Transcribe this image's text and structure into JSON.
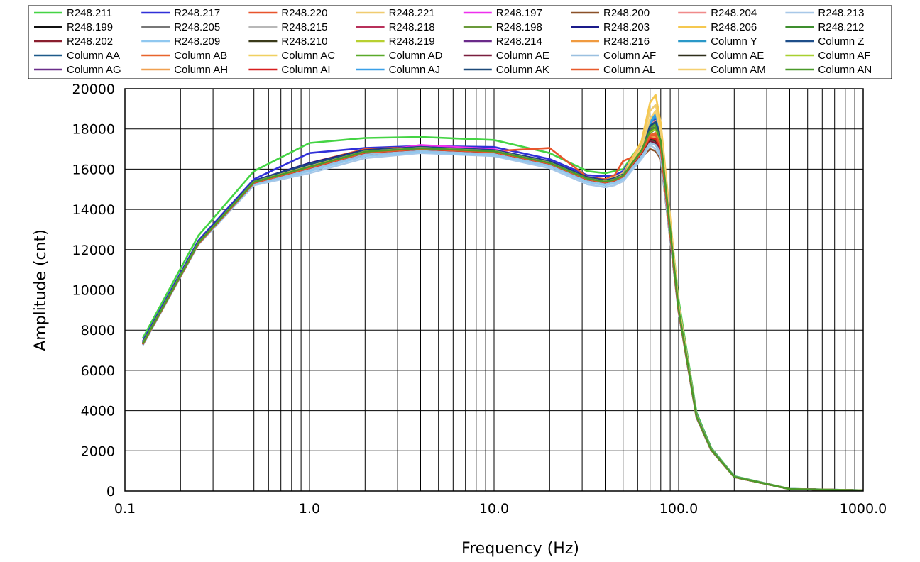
{
  "chart_data": {
    "type": "line",
    "title": "",
    "xlabel": "Frequency (Hz)",
    "ylabel": "Amplitude  (cnt)",
    "xscale": "log",
    "xlim": [
      0.1,
      1000
    ],
    "ylim": [
      0,
      20000
    ],
    "grid": true,
    "legend_position": "top",
    "x_ticks": [
      "0.1",
      "1.0",
      "10.0",
      "100.0",
      "1000.0"
    ],
    "y_ticks": [
      "0",
      "2000",
      "4000",
      "6000",
      "8000",
      "10000",
      "12000",
      "14000",
      "16000",
      "18000",
      "20000"
    ],
    "x": [
      0.125,
      0.25,
      0.5,
      1,
      2,
      4,
      10,
      20,
      32,
      40,
      45,
      50,
      63,
      70,
      75,
      80,
      100,
      125,
      150,
      200,
      400,
      1000
    ],
    "series": [
      {
        "name": "R248.211",
        "color": "#44d444",
        "values": [
          7600,
          12700,
          15900,
          17300,
          17550,
          17600,
          17450,
          16800,
          15900,
          15800,
          15900,
          16000,
          17300,
          18400,
          18700,
          17800,
          9500,
          3900,
          2150,
          740,
          110,
          40
        ]
      },
      {
        "name": "R248.217",
        "color": "#3030d8",
        "values": [
          7450,
          12450,
          15500,
          16800,
          17050,
          17150,
          17100,
          16500,
          15700,
          15650,
          15700,
          15900,
          17200,
          18200,
          18500,
          17700,
          9300,
          3800,
          2100,
          720,
          105,
          40
        ]
      },
      {
        "name": "R248.220",
        "color": "#e8542c",
        "values": [
          7300,
          12300,
          15400,
          16300,
          17000,
          17100,
          16900,
          17050,
          15600,
          15500,
          15700,
          16400,
          16800,
          17800,
          18000,
          17300,
          9000,
          3700,
          2050,
          700,
          100,
          35
        ]
      },
      {
        "name": "R248.221",
        "color": "#f0cc70",
        "values": [
          7350,
          12350,
          15400,
          16200,
          16800,
          17000,
          16850,
          16300,
          15550,
          15450,
          15600,
          15800,
          17300,
          18900,
          19200,
          18100,
          9200,
          3750,
          2080,
          710,
          100,
          35
        ]
      },
      {
        "name": "R248.197",
        "color": "#ee30ee",
        "values": [
          7350,
          12350,
          15350,
          16100,
          16800,
          17200,
          17000,
          16300,
          15500,
          15350,
          15450,
          15650,
          17000,
          18200,
          18400,
          17600,
          9100,
          3750,
          2070,
          710,
          100,
          35
        ]
      },
      {
        "name": "R248.200",
        "color": "#8a5028",
        "values": [
          7300,
          12300,
          15300,
          16000,
          16800,
          17000,
          16800,
          16200,
          15500,
          15300,
          15400,
          15550,
          16600,
          17000,
          16900,
          16500,
          8900,
          3650,
          2030,
          700,
          100,
          35
        ]
      },
      {
        "name": "R248.204",
        "color": "#f08a8a",
        "values": [
          7350,
          12350,
          15350,
          16100,
          16900,
          17050,
          16900,
          16300,
          15500,
          15400,
          15500,
          15700,
          17100,
          18300,
          18400,
          17500,
          9100,
          3740,
          2060,
          710,
          100,
          35
        ]
      },
      {
        "name": "R248.213",
        "color": "#a8c8e8",
        "values": [
          7250,
          12250,
          15200,
          15800,
          16550,
          16800,
          16650,
          16050,
          15250,
          15100,
          15200,
          15400,
          16500,
          17200,
          17000,
          16600,
          8900,
          3650,
          2030,
          690,
          100,
          35
        ]
      },
      {
        "name": "R248.199",
        "color": "#111111",
        "values": [
          7350,
          12350,
          15400,
          16150,
          16850,
          17000,
          16850,
          16300,
          15550,
          15400,
          15500,
          15700,
          16900,
          17900,
          18000,
          17300,
          9000,
          3700,
          2050,
          700,
          100,
          35
        ]
      },
      {
        "name": "R248.205",
        "color": "#777777",
        "values": [
          7300,
          12300,
          15350,
          16050,
          16800,
          16950,
          16800,
          16250,
          15500,
          15350,
          15450,
          15650,
          16800,
          17600,
          17500,
          17100,
          8950,
          3680,
          2040,
          700,
          100,
          35
        ]
      },
      {
        "name": "R248.215",
        "color": "#b8b8b8",
        "values": [
          7300,
          12300,
          15300,
          16000,
          16700,
          16900,
          16750,
          16200,
          15450,
          15300,
          15400,
          15600,
          16700,
          17400,
          17300,
          16900,
          8900,
          3670,
          2040,
          700,
          100,
          35
        ]
      },
      {
        "name": "R248.218",
        "color": "#b8305a",
        "values": [
          7320,
          12320,
          15350,
          16100,
          16850,
          17000,
          16850,
          16300,
          15500,
          15350,
          15450,
          15650,
          16900,
          17900,
          18100,
          17400,
          9000,
          3700,
          2050,
          700,
          100,
          35
        ]
      },
      {
        "name": "R248.198",
        "color": "#6a9a3a",
        "values": [
          7330,
          12330,
          15380,
          16150,
          16900,
          17050,
          16900,
          16300,
          15550,
          15400,
          15500,
          15700,
          16950,
          17950,
          18150,
          17450,
          9050,
          3710,
          2060,
          705,
          100,
          35
        ]
      },
      {
        "name": "R248.203",
        "color": "#1a1a8a",
        "values": [
          7380,
          12380,
          15420,
          16300,
          16950,
          17100,
          16950,
          16400,
          15600,
          15450,
          15550,
          15750,
          17050,
          18100,
          18300,
          17600,
          9100,
          3730,
          2070,
          710,
          100,
          35
        ]
      },
      {
        "name": "R248.206",
        "color": "#f5c850",
        "values": [
          7340,
          12340,
          15380,
          16150,
          16850,
          17050,
          16900,
          16300,
          15500,
          15400,
          15500,
          15750,
          17400,
          19300,
          19700,
          18300,
          9300,
          3760,
          2080,
          710,
          100,
          35
        ]
      },
      {
        "name": "R248.212",
        "color": "#3e8e2e",
        "values": [
          7320,
          12320,
          15350,
          16100,
          16850,
          17000,
          16850,
          16300,
          15500,
          15350,
          15450,
          15650,
          16900,
          17800,
          18000,
          17300,
          9000,
          3700,
          2050,
          700,
          100,
          35
        ]
      },
      {
        "name": "R248.202",
        "color": "#8a1e2e",
        "values": [
          7280,
          12280,
          15300,
          16000,
          16750,
          16950,
          16800,
          16250,
          15450,
          15300,
          15400,
          15600,
          16700,
          17300,
          17200,
          16800,
          8900,
          3670,
          2040,
          700,
          100,
          35
        ]
      },
      {
        "name": "R248.209",
        "color": "#90c8f0",
        "values": [
          7260,
          12260,
          15250,
          15900,
          16650,
          16850,
          16700,
          16150,
          15350,
          15200,
          15300,
          15500,
          16600,
          17300,
          17200,
          16750,
          8900,
          3660,
          2035,
          695,
          100,
          35
        ]
      },
      {
        "name": "R248.210",
        "color": "#3a3a1a",
        "values": [
          7300,
          12300,
          15320,
          16050,
          16800,
          16980,
          16820,
          16260,
          15480,
          15330,
          15430,
          15630,
          16800,
          17500,
          17400,
          17000,
          8950,
          3680,
          2045,
          700,
          100,
          35
        ]
      },
      {
        "name": "R248.219",
        "color": "#b8d030",
        "values": [
          7330,
          12330,
          15360,
          16120,
          16880,
          17030,
          16870,
          16310,
          15520,
          15370,
          15470,
          15670,
          16950,
          17900,
          18100,
          17400,
          9050,
          3710,
          2060,
          705,
          100,
          35
        ]
      },
      {
        "name": "R248.214",
        "color": "#6a2a8a",
        "values": [
          7340,
          12340,
          15370,
          16150,
          16900,
          17080,
          16920,
          16340,
          15540,
          15390,
          15490,
          15690,
          16980,
          17950,
          18150,
          17450,
          9060,
          3715,
          2062,
          706,
          100,
          35
        ]
      },
      {
        "name": "R248.216",
        "color": "#f09a40",
        "values": [
          7320,
          12320,
          15340,
          16080,
          16840,
          17000,
          16850,
          16280,
          15500,
          15350,
          15450,
          15650,
          16850,
          17600,
          17500,
          17100,
          8980,
          3690,
          2048,
          700,
          100,
          35
        ]
      },
      {
        "name": "Column Y",
        "color": "#2a98c8",
        "values": [
          7350,
          12350,
          15400,
          16200,
          16900,
          17080,
          16920,
          16350,
          15560,
          15420,
          15520,
          15720,
          17000,
          18200,
          18700,
          17700,
          9150,
          3740,
          2070,
          710,
          100,
          35
        ]
      },
      {
        "name": "Column Z",
        "color": "#1e4e8a",
        "values": [
          7360,
          12360,
          15410,
          16250,
          16920,
          17100,
          16940,
          16370,
          15580,
          15440,
          15540,
          15740,
          17020,
          18100,
          18300,
          17600,
          9100,
          3730,
          2068,
          708,
          100,
          35
        ]
      },
      {
        "name": "Column AA",
        "color": "#1e5a8a",
        "values": [
          7340,
          12340,
          15380,
          16150,
          16880,
          17050,
          16900,
          16320,
          15540,
          15400,
          15500,
          15700,
          16950,
          17900,
          18050,
          17400,
          9050,
          3710,
          2060,
          705,
          100,
          35
        ]
      },
      {
        "name": "Column AB",
        "color": "#e8642c",
        "values": [
          7310,
          12310,
          15340,
          16080,
          16840,
          17000,
          16860,
          16290,
          15510,
          15360,
          15460,
          15660,
          16880,
          17700,
          17800,
          17200,
          9000,
          3695,
          2052,
          702,
          100,
          35
        ]
      },
      {
        "name": "Column AC",
        "color": "#f0d060",
        "values": [
          7330,
          12330,
          15360,
          16120,
          16870,
          17040,
          16890,
          16310,
          15530,
          15380,
          15480,
          15680,
          16950,
          17950,
          18200,
          17450,
          9050,
          3710,
          2060,
          705,
          100,
          35
        ]
      },
      {
        "name": "Column AD",
        "color": "#5aaa2a",
        "values": [
          7340,
          12340,
          15370,
          16140,
          16890,
          17060,
          16910,
          16330,
          15550,
          15400,
          15500,
          15700,
          16970,
          18000,
          18250,
          17500,
          9070,
          3715,
          2062,
          706,
          100,
          35
        ]
      },
      {
        "name": "Column AE",
        "color": "#7a1e3e",
        "values": [
          7300,
          12300,
          15320,
          16040,
          16800,
          16970,
          16820,
          16260,
          15480,
          15330,
          15430,
          15630,
          16780,
          17400,
          17300,
          16950,
          8950,
          3680,
          2045,
          700,
          100,
          35
        ]
      },
      {
        "name": "Column AF",
        "color": "#9ac0e0",
        "values": [
          7280,
          12280,
          15290,
          15980,
          16750,
          16930,
          16780,
          16220,
          15440,
          15290,
          15390,
          15590,
          16700,
          17300,
          17200,
          16850,
          8920,
          3670,
          2040,
          698,
          100,
          35
        ]
      },
      {
        "name": "Column AE",
        "color": "#2e2e1a",
        "values": [
          7300,
          12300,
          15330,
          16060,
          16820,
          16990,
          16840,
          16270,
          15490,
          15340,
          15440,
          15640,
          16800,
          17500,
          17450,
          17050,
          8960,
          3685,
          2046,
          701,
          100,
          35
        ]
      },
      {
        "name": "Column AF",
        "color": "#a8d030",
        "values": [
          7320,
          12320,
          15350,
          16100,
          16860,
          17020,
          16870,
          16300,
          15520,
          15370,
          15470,
          15670,
          16920,
          17850,
          18000,
          17350,
          9030,
          3705,
          2058,
          704,
          100,
          35
        ]
      },
      {
        "name": "Column AG",
        "color": "#6a2e8a",
        "values": [
          7330,
          12330,
          15360,
          16130,
          16880,
          17050,
          16900,
          16320,
          15540,
          15390,
          15490,
          15690,
          16960,
          17950,
          18100,
          17420,
          9050,
          3712,
          2061,
          705,
          100,
          35
        ]
      },
      {
        "name": "Column AH",
        "color": "#f0a050",
        "values": [
          7310,
          12310,
          15340,
          16090,
          16850,
          17010,
          16860,
          16290,
          15510,
          15360,
          15460,
          15660,
          16880,
          17650,
          17600,
          17150,
          8990,
          3692,
          2050,
          702,
          100,
          35
        ]
      },
      {
        "name": "Column AI",
        "color": "#d81e1e",
        "values": [
          7290,
          12290,
          15320,
          16060,
          16820,
          16990,
          16840,
          16270,
          15490,
          15340,
          15440,
          15640,
          16820,
          17550,
          17500,
          17050,
          8970,
          3685,
          2046,
          701,
          100,
          35
        ]
      },
      {
        "name": "Column AJ",
        "color": "#3aa0e8",
        "values": [
          7350,
          12350,
          15400,
          16200,
          16920,
          17080,
          16920,
          16360,
          15570,
          15430,
          15530,
          15730,
          17050,
          18300,
          18800,
          17800,
          9180,
          3745,
          2072,
          711,
          100,
          35
        ]
      },
      {
        "name": "Column AK",
        "color": "#1e4a7a",
        "values": [
          7360,
          12360,
          15410,
          16230,
          16930,
          17090,
          16930,
          16370,
          15580,
          15440,
          15540,
          15740,
          17030,
          18150,
          18350,
          17650,
          9120,
          3735,
          2069,
          709,
          100,
          35
        ]
      },
      {
        "name": "Column AL",
        "color": "#e85a2c",
        "values": [
          7300,
          12300,
          15330,
          16070,
          16830,
          17000,
          16850,
          16280,
          15500,
          15350,
          15450,
          15650,
          16860,
          17650,
          17700,
          17150,
          8990,
          3690,
          2049,
          701,
          100,
          35
        ]
      },
      {
        "name": "Column AM",
        "color": "#f5d070",
        "values": [
          7340,
          12340,
          15370,
          16140,
          16880,
          17050,
          16900,
          16320,
          15530,
          15390,
          15490,
          15700,
          17100,
          18500,
          18900,
          17900,
          9200,
          3740,
          2070,
          708,
          100,
          35
        ]
      },
      {
        "name": "Column AN",
        "color": "#4a9a2a",
        "values": [
          7330,
          12330,
          15360,
          16120,
          16870,
          17040,
          16890,
          16310,
          15530,
          15380,
          15480,
          15680,
          16940,
          17900,
          18100,
          17420,
          9040,
          3708,
          2059,
          705,
          100,
          35
        ]
      }
    ]
  }
}
